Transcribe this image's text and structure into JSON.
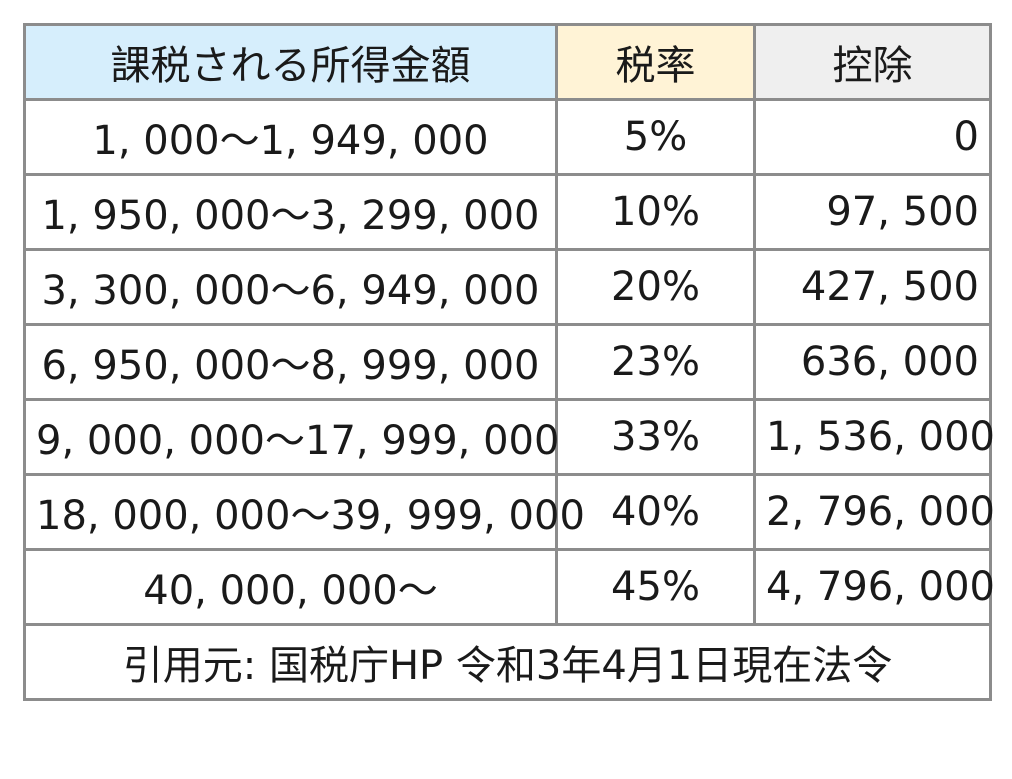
{
  "headers": {
    "income": "課税される所得金額",
    "rate": "税率",
    "deduction": "控除"
  },
  "rows": [
    {
      "income": "1, 000〜1, 949, 000",
      "rate": "5%",
      "deduction": "0"
    },
    {
      "income": "1, 950, 000〜3, 299, 000",
      "rate": "10%",
      "deduction": "97, 500"
    },
    {
      "income": "3, 300, 000〜6, 949, 000",
      "rate": "20%",
      "deduction": "427, 500"
    },
    {
      "income": "6, 950, 000〜8, 999, 000",
      "rate": "23%",
      "deduction": "636, 000"
    },
    {
      "income": "9, 000, 000〜17, 999, 000",
      "rate": "33%",
      "deduction": "1, 536, 000"
    },
    {
      "income": "18, 000, 000〜39, 999, 000",
      "rate": "40%",
      "deduction": "2, 796, 000"
    },
    {
      "income": "40, 000, 000〜",
      "rate": "45%",
      "deduction": "4, 796, 000"
    }
  ],
  "source": "引用元: 国税庁HP 令和3年4月1日現在法令",
  "colors": {
    "income_header_bg": "#d6eefc",
    "rate_header_bg": "#fff3d6",
    "deduction_header_bg": "#efefef",
    "border": "#8c8c8c"
  }
}
